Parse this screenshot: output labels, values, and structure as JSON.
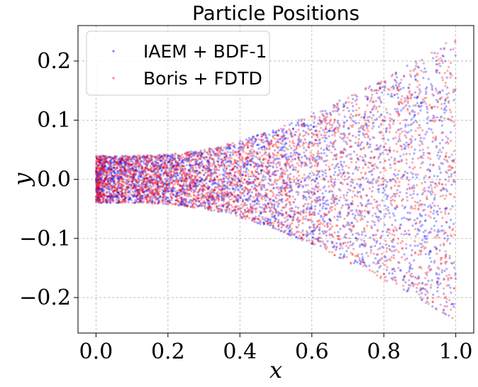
{
  "chart_data": {
    "type": "scatter",
    "title": "Particle Positions",
    "xlabel": "x",
    "ylabel": "y",
    "xlim": [
      -0.05,
      1.05
    ],
    "ylim": [
      -0.26,
      0.26
    ],
    "xticks": [
      {
        "value": 0.0,
        "label": "0.0"
      },
      {
        "value": 0.2,
        "label": "0.2"
      },
      {
        "value": 0.4,
        "label": "0.4"
      },
      {
        "value": 0.6,
        "label": "0.6"
      },
      {
        "value": 0.8,
        "label": "0.8"
      },
      {
        "value": 1.0,
        "label": "1.0"
      }
    ],
    "yticks": [
      {
        "value": 0.2,
        "label": "0.2"
      },
      {
        "value": 0.1,
        "label": "0.1"
      },
      {
        "value": 0.0,
        "label": "0.0"
      },
      {
        "value": -0.1,
        "label": "−0.1"
      },
      {
        "value": -0.2,
        "label": "−0.2"
      }
    ],
    "grid": true,
    "legend_position": "top-left",
    "envelope": {
      "x": [
        0.0,
        0.1,
        0.2,
        0.3,
        0.4,
        0.5,
        0.6,
        0.7,
        0.8,
        0.9,
        1.0
      ],
      "half_width": [
        0.04,
        0.04,
        0.042,
        0.05,
        0.065,
        0.085,
        0.11,
        0.14,
        0.17,
        0.205,
        0.24
      ]
    },
    "series": [
      {
        "name": "IAEM + BDF-1",
        "color": "#0000ff"
      },
      {
        "name": "Boris + FDTD",
        "color": "#ff0000"
      }
    ]
  }
}
